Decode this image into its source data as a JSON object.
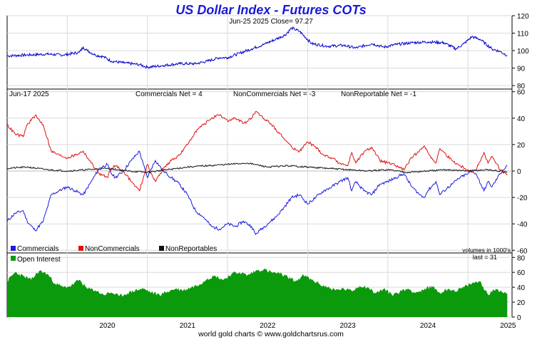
{
  "colors": {
    "title": "#1a1ad6",
    "price": "#0000cc",
    "commercials": "#1a1add",
    "noncommercials": "#e01010",
    "nonreportables": "#111111",
    "open_interest": "#0b9a0b",
    "grid": "#d9d9d9",
    "frame": "#000000"
  },
  "chart_data": {
    "title": "US Dollar Index - Futures COTs",
    "footer": "world gold charts © www.goldchartsrus.com",
    "x_axis": {
      "tick_labels": [
        "2020",
        "2021",
        "2022",
        "2023",
        "2024",
        "2025"
      ],
      "range": [
        2019.25,
        2025.55
      ]
    },
    "price": {
      "type": "line",
      "header": "Jun-25  2025  Close= 97.27",
      "ylim": [
        78,
        120
      ],
      "yticks": [
        "120",
        "110",
        "100",
        "90",
        "80"
      ],
      "x": [
        2019.25,
        2019.5,
        2019.75,
        2019.95,
        2020.15,
        2020.2,
        2020.25,
        2020.35,
        2020.45,
        2020.55,
        2020.7,
        2020.9,
        2021.0,
        2021.2,
        2021.4,
        2021.6,
        2021.75,
        2021.9,
        2022.0,
        2022.15,
        2022.3,
        2022.45,
        2022.6,
        2022.72,
        2022.8,
        2022.9,
        2023.05,
        2023.25,
        2023.45,
        2023.6,
        2023.8,
        2023.95,
        2024.1,
        2024.3,
        2024.5,
        2024.7,
        2024.85,
        2024.95,
        2025.05,
        2025.15,
        2025.3,
        2025.4,
        2025.49
      ],
      "y": [
        97,
        97.5,
        98,
        97.5,
        99,
        102,
        100,
        97.5,
        96.5,
        94,
        93,
        92,
        90.5,
        91.5,
        92.5,
        92.5,
        94,
        96,
        96,
        98.5,
        101,
        103.5,
        106.5,
        109,
        113,
        111,
        104,
        102.5,
        103,
        101.5,
        104,
        102,
        103.5,
        104.5,
        105,
        104.5,
        101,
        104,
        108,
        106.5,
        101,
        99.5,
        97.27
      ]
    },
    "cot": {
      "type": "line",
      "date_label": "Jun-17  2025",
      "labels": [
        "Commercials Net = 4",
        "NonCommercials Net = -3",
        "NonReportable Net = -1"
      ],
      "ylim": [
        -62,
        62
      ],
      "yticks": [
        "60",
        "40",
        "20",
        "0",
        "-20",
        "-40",
        "-60"
      ],
      "volume_note": "volumes in 1000's",
      "series": [
        {
          "name": "Commercials",
          "x": [
            2019.25,
            2019.35,
            2019.45,
            2019.5,
            2019.6,
            2019.7,
            2019.75,
            2019.8,
            2019.9,
            2020.0,
            2020.1,
            2020.2,
            2020.3,
            2020.4,
            2020.5,
            2020.55,
            2020.6,
            2020.7,
            2020.8,
            2020.9,
            2020.95,
            2021.0,
            2021.05,
            2021.1,
            2021.2,
            2021.3,
            2021.4,
            2021.5,
            2021.6,
            2021.7,
            2021.8,
            2021.9,
            2022.0,
            2022.1,
            2022.2,
            2022.3,
            2022.35,
            2022.4,
            2022.5,
            2022.6,
            2022.7,
            2022.8,
            2022.9,
            2023.0,
            2023.1,
            2023.2,
            2023.3,
            2023.4,
            2023.5,
            2023.55,
            2023.6,
            2023.7,
            2023.8,
            2023.9,
            2024.0,
            2024.1,
            2024.2,
            2024.3,
            2024.4,
            2024.45,
            2024.5,
            2024.6,
            2024.65,
            2024.7,
            2024.8,
            2024.9,
            2025.0,
            2025.05,
            2025.1,
            2025.2,
            2025.25,
            2025.3,
            2025.4,
            2025.49
          ],
          "y": [
            -38,
            -32,
            -30,
            -38,
            -45,
            -38,
            -28,
            -18,
            -15,
            -12,
            -15,
            -18,
            -8,
            2,
            5,
            -2,
            -5,
            0,
            8,
            15,
            5,
            -5,
            2,
            8,
            0,
            -5,
            -10,
            -18,
            -30,
            -35,
            -42,
            -44,
            -40,
            -42,
            -38,
            -42,
            -48,
            -45,
            -40,
            -35,
            -28,
            -20,
            -18,
            -25,
            -20,
            -15,
            -12,
            -8,
            -5,
            -15,
            -8,
            -15,
            -18,
            -10,
            -8,
            -5,
            -2,
            -12,
            -18,
            -20,
            -15,
            -8,
            -18,
            -15,
            -10,
            -5,
            -2,
            0,
            -2,
            -15,
            -8,
            -12,
            -2,
            4
          ]
        },
        {
          "name": "NonCommercials",
          "x": [
            2019.25,
            2019.35,
            2019.45,
            2019.5,
            2019.6,
            2019.7,
            2019.75,
            2019.8,
            2019.9,
            2020.0,
            2020.1,
            2020.2,
            2020.3,
            2020.4,
            2020.5,
            2020.55,
            2020.6,
            2020.7,
            2020.8,
            2020.9,
            2020.95,
            2021.0,
            2021.05,
            2021.1,
            2021.2,
            2021.3,
            2021.4,
            2021.5,
            2021.6,
            2021.7,
            2021.8,
            2021.9,
            2022.0,
            2022.1,
            2022.2,
            2022.3,
            2022.35,
            2022.4,
            2022.5,
            2022.6,
            2022.7,
            2022.8,
            2022.9,
            2023.0,
            2023.1,
            2023.2,
            2023.3,
            2023.4,
            2023.5,
            2023.55,
            2023.6,
            2023.7,
            2023.8,
            2023.9,
            2024.0,
            2024.1,
            2024.2,
            2024.3,
            2024.4,
            2024.45,
            2024.5,
            2024.6,
            2024.65,
            2024.7,
            2024.8,
            2024.9,
            2025.0,
            2025.05,
            2025.1,
            2025.2,
            2025.25,
            2025.3,
            2025.4,
            2025.49
          ],
          "y": [
            35,
            28,
            26,
            35,
            42,
            35,
            25,
            15,
            12,
            10,
            12,
            15,
            6,
            -2,
            -5,
            2,
            4,
            0,
            -8,
            -15,
            -5,
            5,
            -2,
            -8,
            2,
            8,
            12,
            20,
            30,
            35,
            40,
            42,
            38,
            40,
            36,
            40,
            45,
            42,
            38,
            32,
            25,
            18,
            15,
            22,
            18,
            12,
            10,
            6,
            4,
            14,
            6,
            14,
            18,
            8,
            6,
            4,
            1,
            10,
            16,
            19,
            14,
            6,
            17,
            14,
            8,
            4,
            1,
            -1,
            1,
            14,
            6,
            11,
            1,
            -3
          ]
        },
        {
          "name": "NonReportables",
          "x": [
            2019.25,
            2019.5,
            2019.75,
            2020.0,
            2020.25,
            2020.5,
            2020.75,
            2021.0,
            2021.25,
            2021.5,
            2021.75,
            2022.0,
            2022.25,
            2022.5,
            2022.75,
            2023.0,
            2023.25,
            2023.5,
            2023.75,
            2024.0,
            2024.25,
            2024.5,
            2024.75,
            2025.0,
            2025.25,
            2025.49
          ],
          "y": [
            2,
            3,
            1,
            0,
            1,
            2,
            0,
            -1,
            1,
            3,
            4,
            5,
            6,
            3,
            4,
            3,
            2,
            1,
            0,
            1,
            -1,
            0,
            1,
            0,
            1,
            -1
          ]
        }
      ]
    },
    "open_interest": {
      "type": "area",
      "name": "Open Interest",
      "last_label": "last = 31",
      "ylim": [
        0,
        86
      ],
      "yticks": [
        "80",
        "60",
        "40",
        "20",
        "0"
      ],
      "x": [
        2019.25,
        2019.35,
        2019.45,
        2019.55,
        2019.65,
        2019.75,
        2019.85,
        2019.95,
        2020.05,
        2020.15,
        2020.25,
        2020.35,
        2020.45,
        2020.55,
        2020.65,
        2020.75,
        2020.85,
        2020.95,
        2021.05,
        2021.15,
        2021.25,
        2021.35,
        2021.45,
        2021.55,
        2021.65,
        2021.75,
        2021.85,
        2021.95,
        2022.05,
        2022.15,
        2022.25,
        2022.35,
        2022.45,
        2022.55,
        2022.65,
        2022.75,
        2022.85,
        2022.95,
        2023.05,
        2023.15,
        2023.25,
        2023.35,
        2023.45,
        2023.55,
        2023.65,
        2023.75,
        2023.85,
        2023.95,
        2024.05,
        2024.15,
        2024.25,
        2024.35,
        2024.45,
        2024.55,
        2024.65,
        2024.75,
        2024.85,
        2024.95,
        2025.05,
        2025.15,
        2025.25,
        2025.35,
        2025.49
      ],
      "y": [
        48,
        60,
        55,
        50,
        62,
        58,
        45,
        40,
        42,
        50,
        38,
        36,
        30,
        33,
        28,
        32,
        36,
        38,
        33,
        30,
        34,
        38,
        36,
        40,
        44,
        52,
        55,
        50,
        58,
        60,
        56,
        62,
        64,
        60,
        58,
        54,
        48,
        56,
        50,
        44,
        40,
        36,
        38,
        35,
        42,
        40,
        32,
        38,
        30,
        34,
        38,
        33,
        36,
        42,
        32,
        38,
        35,
        40,
        45,
        48,
        30,
        38,
        31
      ]
    },
    "legend": [
      "Commercials",
      "NonCommercials",
      "NonReportables"
    ]
  }
}
